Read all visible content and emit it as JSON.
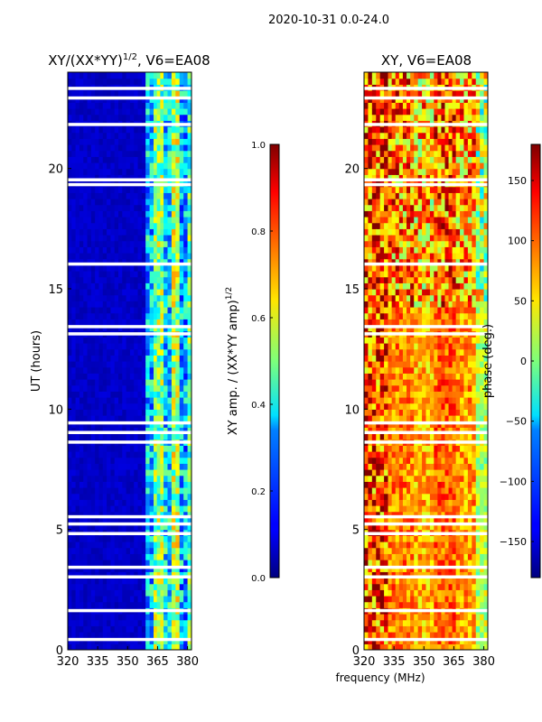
{
  "figure": {
    "suptitle": "2020-10-31 0.0-24.0",
    "shared_xlabel": "frequency (MHz)"
  },
  "chart_data": [
    {
      "type": "heatmap",
      "title_main": "XY/(XX*YY)",
      "title_exp": "1/2",
      "title_suffix": ", V6=EA08",
      "xlabel": "frequency (MHz)",
      "ylabel": "UT (hours)",
      "xlim": [
        320,
        382
      ],
      "ylim": [
        0,
        24
      ],
      "xticks": [
        320,
        335,
        350,
        365,
        380
      ],
      "yticks": [
        0,
        5,
        10,
        15,
        20
      ],
      "colormap": "jet",
      "colorbar": {
        "label_main": "XY amp. / (XX*YY amp)",
        "label_exp": "1/2",
        "range": [
          0.0,
          1.0
        ],
        "ticks": [
          {
            "value": 0.0,
            "label": "0.0"
          },
          {
            "value": 0.2,
            "label": "0.2"
          },
          {
            "value": 0.4,
            "label": "0.4"
          },
          {
            "value": 0.6,
            "label": "0.6"
          },
          {
            "value": 0.8,
            "label": "0.8"
          },
          {
            "value": 1.0,
            "label": "1.0"
          }
        ]
      },
      "description": "Low amplitude (~0.05) from 320-359 MHz; enhanced amplitude (~0.3-0.6) from ~359-382 MHz",
      "regions": [
        {
          "f0": 320,
          "f1": 359,
          "value": 0.07
        },
        {
          "f0": 359,
          "f1": 363,
          "value": 0.32
        },
        {
          "f0": 363,
          "f1": 368,
          "value": 0.5
        },
        {
          "f0": 368,
          "f1": 372,
          "value": 0.35
        },
        {
          "f0": 372,
          "f1": 376,
          "value": 0.55
        },
        {
          "f0": 376,
          "f1": 380,
          "value": 0.3
        },
        {
          "f0": 380,
          "f1": 382,
          "value": 0.45
        }
      ],
      "gaps_hours": [
        0.4,
        1.6,
        3.0,
        3.4,
        4.8,
        5.2,
        5.5,
        8.6,
        9.0,
        9.4,
        13.1,
        13.4,
        16.0,
        19.3,
        19.5,
        21.8,
        22.9,
        23.3
      ]
    },
    {
      "type": "heatmap",
      "title_main": "XY, V6=EA08",
      "xlabel": "frequency (MHz)",
      "ylabel": "",
      "xlim": [
        320,
        382
      ],
      "ylim": [
        0,
        24
      ],
      "xticks": [
        320,
        335,
        350,
        365,
        380
      ],
      "yticks": [
        0,
        5,
        10,
        15,
        20
      ],
      "colormap": "jet",
      "colorbar": {
        "label_main": "phase (deg.)",
        "range": [
          -180,
          180
        ],
        "ticks": [
          {
            "value": -150,
            "label": "−150"
          },
          {
            "value": -100,
            "label": "−100"
          },
          {
            "value": -50,
            "label": "−50"
          },
          {
            "value": 0,
            "label": "0"
          },
          {
            "value": 50,
            "label": "50"
          },
          {
            "value": 100,
            "label": "100"
          },
          {
            "value": 150,
            "label": "150"
          }
        ]
      },
      "description": "Phase mostly 60-140 deg (orange/red), noisier and more variable at low frequencies and after ~14 UT",
      "regions": [
        {
          "f0": 320,
          "f1": 332,
          "value": 110
        },
        {
          "f0": 332,
          "f1": 345,
          "value": 90
        },
        {
          "f0": 345,
          "f1": 355,
          "value": 70
        },
        {
          "f0": 355,
          "f1": 366,
          "value": 100
        },
        {
          "f0": 366,
          "f1": 376,
          "value": 80
        },
        {
          "f0": 376,
          "f1": 382,
          "value": 20
        }
      ],
      "gaps_hours": [
        0.4,
        1.6,
        3.0,
        3.4,
        4.8,
        5.2,
        5.5,
        8.6,
        9.0,
        9.4,
        13.1,
        13.4,
        16.0,
        19.3,
        19.5,
        21.8,
        22.9,
        23.3
      ]
    }
  ]
}
